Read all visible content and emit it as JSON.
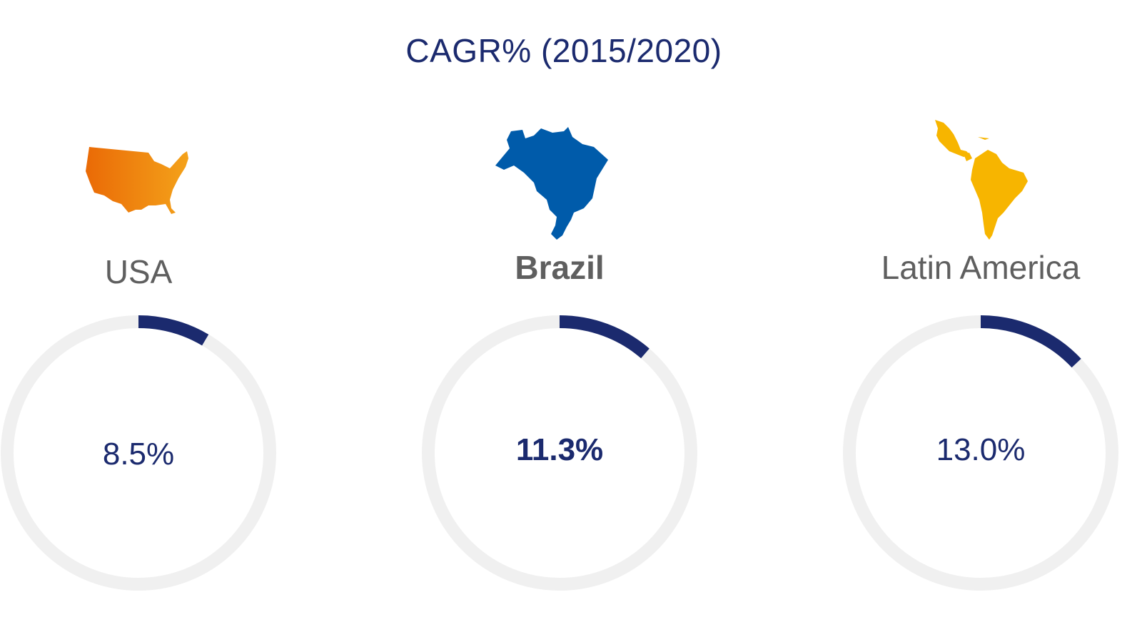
{
  "chart_data": {
    "type": "radial-progress",
    "title": "CAGR% (2015/2020)",
    "unit": "%",
    "ring_max": 100,
    "items": [
      {
        "region": "USA",
        "value": 8.5,
        "label": "8.5%",
        "icon": "usa-map-icon",
        "icon_color": "#ef7d00",
        "highlight": false
      },
      {
        "region": "Brazil",
        "value": 11.3,
        "label": "11.3%",
        "icon": "brazil-map-icon",
        "icon_color": "#005baa",
        "highlight": true
      },
      {
        "region": "Latin America",
        "value": 13.0,
        "label": "13.0%",
        "icon": "latin-america-map-icon",
        "icon_color": "#f7b500",
        "highlight": false
      }
    ]
  },
  "colors": {
    "title": "#1b2a6e",
    "progress": "#1b2a6e",
    "track": "#f0f0f0",
    "region_text": "#5f5f5f"
  }
}
